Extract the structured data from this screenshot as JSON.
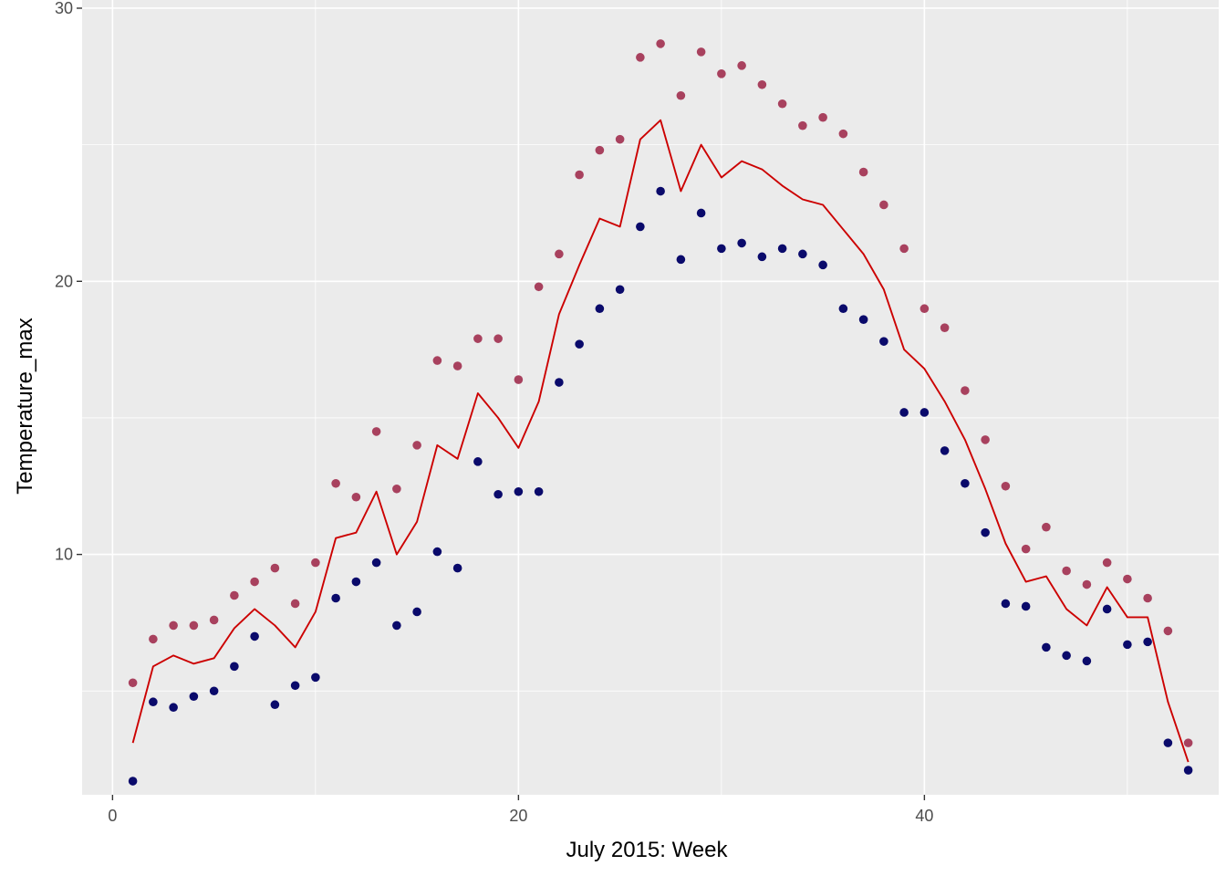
{
  "chart_data": {
    "type": "line",
    "title": "",
    "xlabel": "July 2015: Week",
    "ylabel": "Temperature_max",
    "xlim": [
      -1.5,
      54.5
    ],
    "ylim": [
      1.2,
      30.3
    ],
    "x_ticks": [
      0,
      20,
      40
    ],
    "x_minor": [
      10,
      30,
      50
    ],
    "y_ticks": [
      10,
      20,
      30
    ],
    "y_minor": [
      5,
      15,
      25
    ],
    "grid": true,
    "colors": {
      "panel": "#ebebeb",
      "grid": "#ffffff",
      "upper_points": "#a8415e",
      "lower_points": "#0a0a6b",
      "line": "#cc0000",
      "tick": "#333333"
    },
    "series": [
      {
        "kind": "points",
        "style": "upper",
        "x": [
          1,
          2,
          3,
          4,
          5,
          6,
          7,
          8,
          9,
          10,
          11,
          12,
          13,
          14,
          15,
          16,
          17,
          18,
          19,
          20,
          21,
          22,
          23,
          24,
          25,
          26,
          27,
          28,
          29,
          30,
          31,
          32,
          33,
          34,
          35,
          36,
          37,
          38,
          39,
          40,
          41,
          42,
          43,
          44,
          45,
          46,
          47,
          48,
          49,
          50,
          51,
          52,
          53
        ],
        "y": [
          5.3,
          6.9,
          7.4,
          7.4,
          7.6,
          8.5,
          9.0,
          9.5,
          8.2,
          9.7,
          12.6,
          12.1,
          14.5,
          12.4,
          14.0,
          17.1,
          16.9,
          17.9,
          17.9,
          16.4,
          19.8,
          21.0,
          23.9,
          24.8,
          25.2,
          28.2,
          28.7,
          26.8,
          28.4,
          27.6,
          27.9,
          27.2,
          26.5,
          25.7,
          26.0,
          25.4,
          24.0,
          22.8,
          21.2,
          19.0,
          18.3,
          16.0,
          14.2,
          12.5,
          10.2,
          11.0,
          9.4,
          8.9,
          9.7,
          9.1,
          8.4,
          7.2,
          3.1
        ]
      },
      {
        "kind": "points",
        "style": "lower",
        "x": [
          1,
          2,
          3,
          4,
          5,
          6,
          7,
          8,
          9,
          10,
          11,
          12,
          13,
          14,
          15,
          16,
          17,
          18,
          19,
          20,
          21,
          22,
          23,
          24,
          25,
          26,
          27,
          28,
          29,
          30,
          31,
          32,
          33,
          34,
          35,
          36,
          37,
          38,
          39,
          40,
          41,
          42,
          43,
          44,
          45,
          46,
          47,
          48,
          49,
          50,
          51,
          52,
          53
        ],
        "y": [
          1.7,
          4.6,
          4.4,
          4.8,
          5.0,
          5.9,
          7.0,
          4.5,
          5.2,
          5.5,
          8.4,
          9.0,
          9.7,
          7.4,
          7.9,
          10.1,
          9.5,
          13.4,
          12.2,
          12.3,
          12.3,
          16.3,
          17.7,
          19.0,
          19.7,
          22.0,
          23.3,
          20.8,
          22.5,
          21.2,
          21.4,
          20.9,
          21.2,
          21.0,
          20.6,
          19.0,
          18.6,
          17.8,
          15.2,
          15.2,
          13.8,
          12.6,
          10.8,
          8.2,
          8.1,
          6.6,
          6.3,
          6.1,
          8.0,
          6.7,
          6.8,
          3.1,
          2.1
        ]
      },
      {
        "kind": "line",
        "style": "line",
        "x": [
          1,
          2,
          3,
          4,
          5,
          6,
          7,
          8,
          9,
          10,
          11,
          12,
          13,
          14,
          15,
          16,
          17,
          18,
          19,
          20,
          21,
          22,
          23,
          24,
          25,
          26,
          27,
          28,
          29,
          30,
          31,
          32,
          33,
          34,
          35,
          36,
          37,
          38,
          39,
          40,
          41,
          42,
          43,
          44,
          45,
          46,
          47,
          48,
          49,
          50,
          51,
          52,
          53
        ],
        "y": [
          3.1,
          5.9,
          6.3,
          6.0,
          6.2,
          7.3,
          8.0,
          7.4,
          6.6,
          7.9,
          10.6,
          10.8,
          12.3,
          10.0,
          11.2,
          14.0,
          13.5,
          15.9,
          15.0,
          13.9,
          15.6,
          18.8,
          20.6,
          22.3,
          22.0,
          25.2,
          25.9,
          23.3,
          25.0,
          23.8,
          24.4,
          24.1,
          23.5,
          23.0,
          22.8,
          21.9,
          21.0,
          19.7,
          17.5,
          16.8,
          15.6,
          14.2,
          12.4,
          10.4,
          9.0,
          9.2,
          8.0,
          7.4,
          8.8,
          7.7,
          7.7,
          4.6,
          2.4
        ]
      }
    ]
  }
}
